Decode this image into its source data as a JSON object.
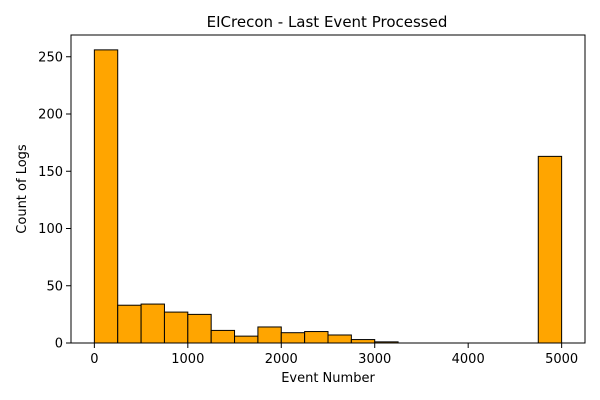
{
  "chart_data": {
    "type": "bar",
    "title": "EICrecon - Last Event Processed",
    "xlabel": "Event Number",
    "ylabel": "Count of Logs",
    "xlim": [
      -250,
      5250
    ],
    "ylim": [
      0,
      269
    ],
    "x_ticks": [
      0,
      1000,
      2000,
      3000,
      4000,
      5000
    ],
    "y_ticks": [
      0,
      50,
      100,
      150,
      200,
      250
    ],
    "bar_color": "#ffa500",
    "edge_color": "#000000",
    "grid": false,
    "bins": [
      {
        "start": 0,
        "end": 250,
        "value": 256
      },
      {
        "start": 250,
        "end": 500,
        "value": 33
      },
      {
        "start": 500,
        "end": 750,
        "value": 34
      },
      {
        "start": 750,
        "end": 1000,
        "value": 27
      },
      {
        "start": 1000,
        "end": 1250,
        "value": 25
      },
      {
        "start": 1250,
        "end": 1500,
        "value": 11
      },
      {
        "start": 1500,
        "end": 1750,
        "value": 6
      },
      {
        "start": 1750,
        "end": 2000,
        "value": 14
      },
      {
        "start": 2000,
        "end": 2250,
        "value": 9
      },
      {
        "start": 2250,
        "end": 2500,
        "value": 10
      },
      {
        "start": 2500,
        "end": 2750,
        "value": 7
      },
      {
        "start": 2750,
        "end": 3000,
        "value": 3
      },
      {
        "start": 3000,
        "end": 3250,
        "value": 1
      },
      {
        "start": 3250,
        "end": 3500,
        "value": 0
      },
      {
        "start": 3500,
        "end": 3750,
        "value": 0
      },
      {
        "start": 3750,
        "end": 4000,
        "value": 0
      },
      {
        "start": 4000,
        "end": 4250,
        "value": 0
      },
      {
        "start": 4250,
        "end": 4500,
        "value": 0
      },
      {
        "start": 4500,
        "end": 4750,
        "value": 0
      },
      {
        "start": 4750,
        "end": 5000,
        "value": 163
      }
    ]
  }
}
